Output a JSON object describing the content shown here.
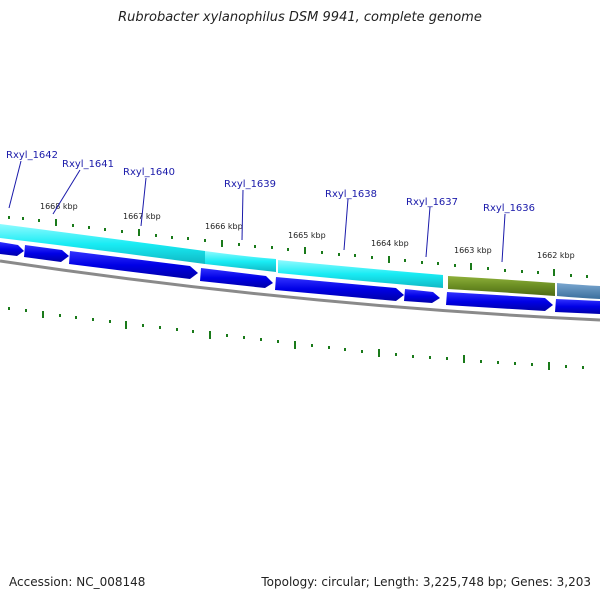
{
  "title": "Rubrobacter xylanophilus DSM 9941, complete genome",
  "footer": {
    "accession": "Accession: NC_008148",
    "summary": "Topology: circular; Length: 3,225,748 bp; Genes: 3,203"
  },
  "colors": {
    "gene_label": "#1a1aaa",
    "cds_forward": "#0000e6",
    "feature_cyan": "#19ecf4",
    "feature_olive": "#6b8e23",
    "feature_steel": "#4682b4",
    "backbone": "#8a8a8a",
    "tick": "#1a7a1a"
  },
  "gene_labels": [
    "Rxyl_1642",
    "Rxyl_1641",
    "Rxyl_1640",
    "Rxyl_1639",
    "Rxyl_1638",
    "Rxyl_1637",
    "Rxyl_1636"
  ],
  "kbp_labels": [
    "1668 kbp",
    "1667 kbp",
    "1666 kbp",
    "1665 kbp",
    "1664 kbp",
    "1663 kbp",
    "1662 kbp"
  ]
}
